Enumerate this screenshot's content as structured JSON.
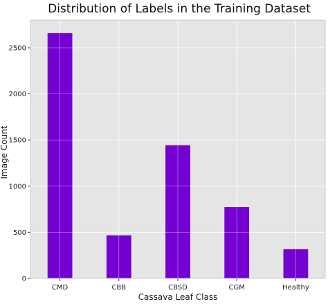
{
  "chart_data": {
    "type": "bar",
    "title": "Distribution of Labels in the Training Dataset",
    "xlabel": "Cassava Leaf Class",
    "ylabel": "Image Count",
    "categories": [
      "CMD",
      "CBB",
      "CBSD",
      "CGM",
      "Healthy"
    ],
    "values": [
      2658,
      466,
      1443,
      773,
      316
    ],
    "ylim": [
      0,
      2800
    ],
    "yticks": [
      0,
      500,
      1000,
      1500,
      2000,
      2500
    ],
    "grid": true,
    "colors": {
      "bar": "#7400d2",
      "plot_background": "#e5e5e5",
      "grid": "#ffffff"
    }
  }
}
